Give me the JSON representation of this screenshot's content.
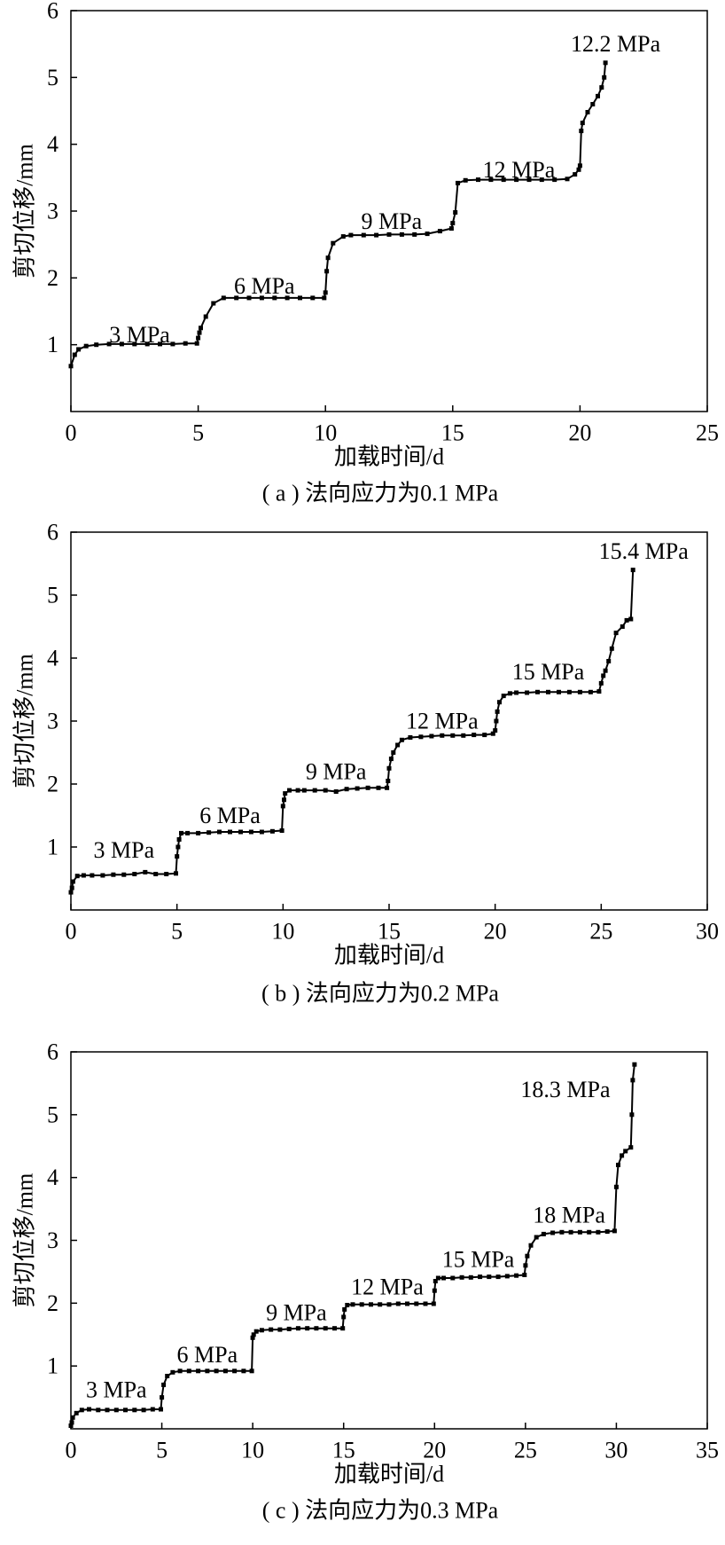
{
  "chart_data": [
    {
      "type": "line",
      "xlabel": "加载时间/d",
      "ylabel": "剪切位移/mm",
      "caption": "( a ) 法向应力为0.1 MPa",
      "xlim": [
        0,
        25
      ],
      "ylim": [
        0,
        6
      ],
      "xticks": [
        "0",
        "5",
        "10",
        "15",
        "20",
        "25"
      ],
      "yticks": [
        "1",
        "2",
        "3",
        "4",
        "5",
        "6"
      ],
      "grid": false,
      "series": [
        {
          "x": [
            0,
            0.15,
            0.3,
            0.6,
            1,
            1.5,
            2,
            2.5,
            3,
            3.5,
            4,
            4.5,
            4.95,
            5.0,
            5.05,
            5.1,
            5.3,
            5.6,
            6,
            6.5,
            7,
            7.5,
            8,
            8.5,
            9,
            9.5,
            9.95,
            10.0,
            10.05,
            10.1,
            10.3,
            10.7,
            11,
            11.5,
            12,
            12.5,
            13,
            13.5,
            14,
            14.5,
            14.95,
            15.0,
            15.1,
            15.2,
            15.5,
            16,
            16.5,
            17,
            17.5,
            18,
            18.5,
            19,
            19.5,
            19.8,
            19.95,
            20.0,
            20.05,
            20.1,
            20.3,
            20.5,
            20.7,
            20.85,
            20.95,
            21.0
          ],
          "y": [
            0.68,
            0.85,
            0.93,
            0.98,
            1.0,
            1.01,
            1.01,
            1.01,
            1.01,
            1.01,
            1.01,
            1.02,
            1.02,
            1.1,
            1.18,
            1.25,
            1.42,
            1.62,
            1.7,
            1.7,
            1.7,
            1.7,
            1.7,
            1.7,
            1.7,
            1.7,
            1.7,
            1.78,
            2.1,
            2.3,
            2.52,
            2.62,
            2.64,
            2.64,
            2.64,
            2.65,
            2.65,
            2.65,
            2.66,
            2.7,
            2.74,
            2.82,
            2.98,
            3.42,
            3.46,
            3.47,
            3.47,
            3.47,
            3.47,
            3.47,
            3.47,
            3.47,
            3.48,
            3.55,
            3.62,
            3.68,
            4.2,
            4.32,
            4.48,
            4.6,
            4.72,
            4.85,
            5.0,
            5.22
          ]
        }
      ],
      "annotations": [
        {
          "text": "3 MPa",
          "x": 2.7,
          "y": 1.15
        },
        {
          "text": "6 MPa",
          "x": 7.6,
          "y": 1.88
        },
        {
          "text": "9 MPa",
          "x": 12.6,
          "y": 2.85
        },
        {
          "text": "12 MPa",
          "x": 17.6,
          "y": 3.62
        },
        {
          "text": "12.2 MPa",
          "x": 21.4,
          "y": 5.5
        }
      ]
    },
    {
      "type": "line",
      "xlabel": "加载时间/d",
      "ylabel": "剪切位移/mm",
      "caption": "( b ) 法向应力为0.2 MPa",
      "xlim": [
        0,
        30
      ],
      "ylim": [
        0,
        6
      ],
      "xticks": [
        "0",
        "5",
        "10",
        "15",
        "20",
        "25",
        "30"
      ],
      "yticks": [
        "1",
        "2",
        "3",
        "4",
        "5",
        "6"
      ],
      "grid": false,
      "series": [
        {
          "x": [
            0,
            0.05,
            0.1,
            0.3,
            0.6,
            1,
            1.5,
            2,
            2.5,
            3,
            3.5,
            4,
            4.5,
            4.95,
            5.0,
            5.05,
            5.1,
            5.2,
            5.5,
            6,
            6.5,
            7,
            7.5,
            8,
            8.5,
            9,
            9.5,
            9.95,
            10.0,
            10.05,
            10.1,
            10.3,
            10.7,
            11,
            11.5,
            12,
            12.5,
            13,
            13.5,
            14,
            14.5,
            14.9,
            14.95,
            15.0,
            15.1,
            15.2,
            15.4,
            15.6,
            16,
            16.5,
            17,
            17.5,
            18,
            18.5,
            19,
            19.5,
            19.9,
            20.0,
            20.05,
            20.1,
            20.2,
            20.4,
            20.7,
            21,
            21.5,
            22,
            22.5,
            23,
            23.5,
            24,
            24.5,
            24.9,
            25.0,
            25.1,
            25.2,
            25.35,
            25.5,
            25.7,
            26,
            26.2,
            26.4,
            26.5
          ],
          "y": [
            0.28,
            0.35,
            0.45,
            0.54,
            0.55,
            0.55,
            0.55,
            0.56,
            0.56,
            0.57,
            0.6,
            0.57,
            0.57,
            0.58,
            0.85,
            1.0,
            1.12,
            1.22,
            1.22,
            1.22,
            1.23,
            1.24,
            1.24,
            1.24,
            1.24,
            1.24,
            1.25,
            1.26,
            1.65,
            1.75,
            1.85,
            1.9,
            1.9,
            1.9,
            1.9,
            1.9,
            1.88,
            1.92,
            1.93,
            1.94,
            1.94,
            1.94,
            2.05,
            2.25,
            2.4,
            2.5,
            2.62,
            2.7,
            2.74,
            2.75,
            2.76,
            2.77,
            2.77,
            2.77,
            2.78,
            2.78,
            2.8,
            2.85,
            3.0,
            3.15,
            3.3,
            3.4,
            3.44,
            3.45,
            3.45,
            3.46,
            3.46,
            3.46,
            3.46,
            3.46,
            3.46,
            3.47,
            3.6,
            3.72,
            3.8,
            3.95,
            4.15,
            4.4,
            4.5,
            4.6,
            4.62,
            5.4
          ]
        }
      ],
      "annotations": [
        {
          "text": "3 MPa",
          "x": 2.5,
          "y": 0.95
        },
        {
          "text": "6 MPa",
          "x": 7.5,
          "y": 1.5
        },
        {
          "text": "9 MPa",
          "x": 12.5,
          "y": 2.2
        },
        {
          "text": "12 MPa",
          "x": 17.5,
          "y": 3.0
        },
        {
          "text": "15 MPa",
          "x": 22.5,
          "y": 3.78
        },
        {
          "text": "15.4 MPa",
          "x": 27,
          "y": 5.7
        }
      ]
    },
    {
      "type": "line",
      "xlabel": "加载时间/d",
      "ylabel": "剪切位移/mm",
      "caption": "( c ) 法向应力为0.3 MPa",
      "xlim": [
        0,
        35
      ],
      "ylim": [
        0,
        6
      ],
      "xticks": [
        "0",
        "5",
        "10",
        "15",
        "20",
        "25",
        "30",
        "35"
      ],
      "yticks": [
        "1",
        "2",
        "3",
        "4",
        "5",
        "6"
      ],
      "grid": false,
      "series": [
        {
          "x": [
            0,
            0.05,
            0.1,
            0.3,
            0.6,
            1,
            1.5,
            2,
            2.5,
            3,
            3.5,
            4,
            4.5,
            4.95,
            5.0,
            5.1,
            5.3,
            5.6,
            6,
            6.5,
            7,
            7.5,
            8,
            8.5,
            9,
            9.5,
            9.95,
            10.0,
            10.05,
            10.2,
            10.5,
            11,
            11.5,
            12,
            12.5,
            13,
            13.5,
            14,
            14.5,
            14.95,
            15.0,
            15.05,
            15.2,
            15.5,
            16,
            16.5,
            17,
            17.5,
            18,
            18.5,
            19,
            19.5,
            19.95,
            20.0,
            20.05,
            20.2,
            20.5,
            21,
            21.5,
            22,
            22.5,
            23,
            23.5,
            24,
            24.5,
            24.95,
            25.0,
            25.1,
            25.3,
            25.6,
            26,
            26.5,
            27,
            27.5,
            28,
            28.5,
            29,
            29.5,
            29.9,
            30.0,
            30.1,
            30.3,
            30.5,
            30.8,
            30.85,
            30.9,
            31.0
          ],
          "y": [
            0.05,
            0.1,
            0.18,
            0.25,
            0.3,
            0.31,
            0.3,
            0.3,
            0.3,
            0.3,
            0.3,
            0.3,
            0.31,
            0.31,
            0.5,
            0.7,
            0.84,
            0.9,
            0.92,
            0.92,
            0.92,
            0.92,
            0.92,
            0.92,
            0.92,
            0.92,
            0.92,
            1.45,
            1.5,
            1.55,
            1.57,
            1.58,
            1.58,
            1.59,
            1.6,
            1.6,
            1.6,
            1.6,
            1.6,
            1.6,
            1.78,
            1.9,
            1.97,
            1.98,
            1.98,
            1.98,
            1.98,
            1.98,
            1.99,
            1.99,
            1.99,
            1.99,
            1.99,
            2.2,
            2.35,
            2.4,
            2.4,
            2.4,
            2.41,
            2.41,
            2.42,
            2.42,
            2.42,
            2.43,
            2.44,
            2.45,
            2.6,
            2.75,
            2.92,
            3.05,
            3.1,
            3.12,
            3.13,
            3.13,
            3.13,
            3.13,
            3.13,
            3.14,
            3.15,
            3.85,
            4.2,
            4.35,
            4.42,
            4.48,
            5.0,
            5.55,
            5.8
          ]
        }
      ],
      "annotations": [
        {
          "text": "3 MPa",
          "x": 2.5,
          "y": 0.62
        },
        {
          "text": "6 MPa",
          "x": 7.5,
          "y": 1.18
        },
        {
          "text": "9 MPa",
          "x": 12.4,
          "y": 1.85
        },
        {
          "text": "12 MPa",
          "x": 17.4,
          "y": 2.26
        },
        {
          "text": "15 MPa",
          "x": 22.4,
          "y": 2.7
        },
        {
          "text": "18 MPa",
          "x": 27.4,
          "y": 3.4
        },
        {
          "text": "18.3 MPa",
          "x": 27.2,
          "y": 5.4
        }
      ]
    }
  ]
}
